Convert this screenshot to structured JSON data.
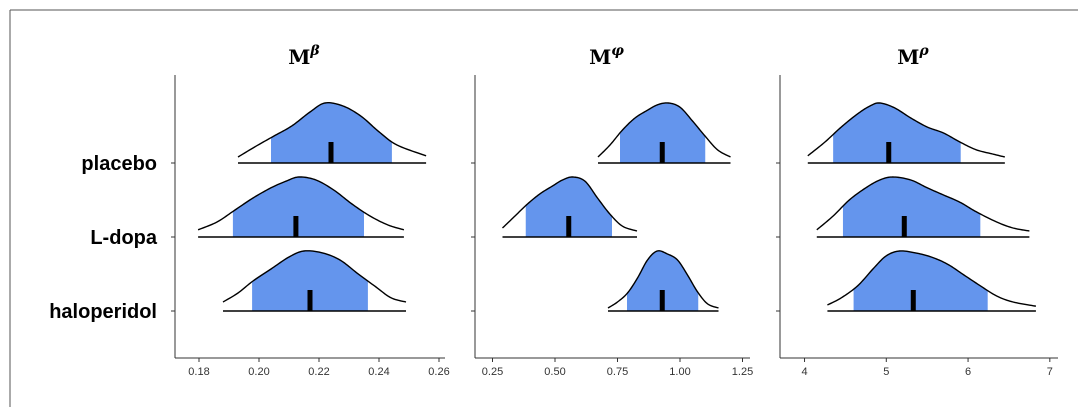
{
  "chart_data": [
    {
      "type": "ridgeline",
      "title": "M",
      "title_sup": "β",
      "categories": [
        "placebo",
        "L-dopa",
        "haloperidol"
      ],
      "xlim": [
        0.172,
        0.262
      ],
      "xticks": [
        0.18,
        {
          "value": 0.2,
          "label": "0.20"
        },
        0.22,
        0.24,
        0.26
      ],
      "fill": "#6495ed",
      "line_color": "#000000",
      "series": [
        {
          "x": [
            0.193,
            0.199,
            0.205,
            0.211,
            0.217,
            0.222,
            0.228,
            0.234,
            0.24,
            0.246,
            0.2557
          ],
          "density": [
            0.1,
            0.28,
            0.45,
            0.62,
            0.85,
            1.0,
            0.95,
            0.78,
            0.52,
            0.3,
            0.12
          ],
          "interval": [
            0.204,
            0.2443
          ],
          "median": 0.224
        },
        {
          "x": [
            0.1797,
            0.186,
            0.192,
            0.198,
            0.204,
            0.209,
            0.2133,
            0.219,
            0.225,
            0.231,
            0.237,
            0.243,
            0.2483
          ],
          "density": [
            0.12,
            0.25,
            0.45,
            0.65,
            0.82,
            0.93,
            1.0,
            0.95,
            0.78,
            0.55,
            0.35,
            0.2,
            0.12
          ],
          "interval": [
            0.1913,
            0.235
          ],
          "median": 0.2123
        },
        {
          "x": [
            0.188,
            0.193,
            0.198,
            0.204,
            0.21,
            0.215,
            0.221,
            0.227,
            0.233,
            0.239,
            0.244,
            0.249
          ],
          "density": [
            0.15,
            0.3,
            0.5,
            0.7,
            0.9,
            1.0,
            0.97,
            0.85,
            0.62,
            0.4,
            0.22,
            0.15
          ],
          "interval": [
            0.1977,
            0.2363
          ],
          "median": 0.217
        }
      ]
    },
    {
      "type": "ridgeline",
      "title": "M",
      "title_sup": "φ",
      "xlim": [
        0.18,
        1.28
      ],
      "xticks": [
        0.25,
        {
          "value": 0.5,
          "label": "0.50"
        },
        0.75,
        {
          "value": 1,
          "label": "1.00"
        },
        1.25
      ],
      "fill": "#6495ed",
      "line_color": "#000000",
      "series": [
        {
          "x": [
            0.672,
            0.72,
            0.77,
            0.82,
            0.87,
            0.91,
            0.953,
            1.0,
            1.05,
            1.1,
            1.15,
            1.202
          ],
          "density": [
            0.1,
            0.3,
            0.55,
            0.75,
            0.88,
            0.97,
            1.0,
            0.93,
            0.7,
            0.45,
            0.22,
            0.1
          ],
          "interval": [
            0.76,
            1.101
          ],
          "median": 0.929
        },
        {
          "x": [
            0.29,
            0.34,
            0.39,
            0.44,
            0.49,
            0.53,
            0.571,
            0.62,
            0.67,
            0.72,
            0.77,
            0.828
          ],
          "density": [
            0.15,
            0.35,
            0.55,
            0.72,
            0.85,
            0.95,
            1.0,
            0.93,
            0.65,
            0.38,
            0.18,
            0.1
          ],
          "interval": [
            0.383,
            0.728
          ],
          "median": 0.555
        },
        {
          "x": [
            0.712,
            0.75,
            0.79,
            0.83,
            0.87,
            0.909,
            0.95,
            0.99,
            1.03,
            1.07,
            1.11,
            1.154
          ],
          "density": [
            0.05,
            0.15,
            0.3,
            0.55,
            0.85,
            1.0,
            0.95,
            0.85,
            0.6,
            0.32,
            0.12,
            0.05
          ],
          "interval": [
            0.788,
            1.073
          ],
          "median": 0.929
        }
      ]
    },
    {
      "type": "ridgeline",
      "title": "M",
      "title_sup": "ρ",
      "xlim": [
        3.7,
        7.1
      ],
      "xticks": [
        4,
        5,
        6,
        7
      ],
      "fill": "#6495ed",
      "line_color": "#000000",
      "series": [
        {
          "x": [
            4.04,
            4.25,
            4.45,
            4.65,
            4.8,
            4.92,
            5.1,
            5.3,
            5.5,
            5.7,
            5.9,
            6.1,
            6.3,
            6.45
          ],
          "density": [
            0.12,
            0.35,
            0.6,
            0.82,
            0.95,
            1.0,
            0.92,
            0.75,
            0.6,
            0.5,
            0.35,
            0.22,
            0.15,
            0.1
          ],
          "interval": [
            4.35,
            5.91
          ],
          "median": 5.03
        },
        {
          "x": [
            4.15,
            4.35,
            4.55,
            4.75,
            4.92,
            5.08,
            5.3,
            5.5,
            5.7,
            5.9,
            6.1,
            6.35,
            6.55,
            6.75
          ],
          "density": [
            0.12,
            0.35,
            0.62,
            0.82,
            0.95,
            1.0,
            0.95,
            0.82,
            0.7,
            0.58,
            0.42,
            0.25,
            0.15,
            0.1
          ],
          "interval": [
            4.47,
            6.15
          ],
          "median": 5.22
        },
        {
          "x": [
            4.28,
            4.45,
            4.65,
            4.85,
            5.0,
            5.16,
            5.35,
            5.55,
            5.75,
            5.95,
            6.15,
            6.35,
            6.55,
            6.83
          ],
          "density": [
            0.1,
            0.22,
            0.42,
            0.72,
            0.92,
            1.0,
            0.97,
            0.9,
            0.78,
            0.6,
            0.42,
            0.25,
            0.15,
            0.08
          ],
          "interval": [
            4.6,
            6.24
          ],
          "median": 5.33
        }
      ]
    }
  ]
}
